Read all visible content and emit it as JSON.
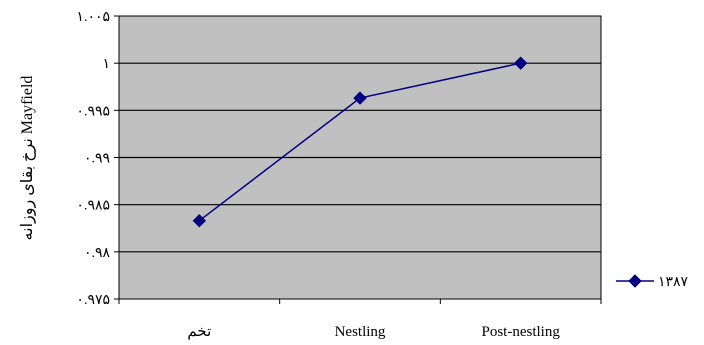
{
  "chart_data": {
    "type": "line",
    "title": "",
    "xlabel": "",
    "ylabel": "نرخ بقای روزانه Mayfield",
    "categories": [
      "تخم",
      "Nestling",
      "Post-nestling"
    ],
    "ylim": [
      0.975,
      1.005
    ],
    "yticks": [
      0.975,
      0.98,
      0.985,
      0.99,
      0.995,
      1,
      1.005
    ],
    "ytick_labels": [
      "۰.۹۷۵",
      "۰.۹۸",
      "۰.۹۸۵",
      "۰.۹۹",
      "۰.۹۹۵",
      "۱",
      "۱.۰۰۵"
    ],
    "grid": true,
    "legend": "right",
    "plot_background": "#c0c0c0",
    "series": [
      {
        "name": "۱۳۸۷",
        "color": "#000080",
        "values": [
          0.9833,
          0.9963,
          1.0
        ]
      }
    ]
  }
}
